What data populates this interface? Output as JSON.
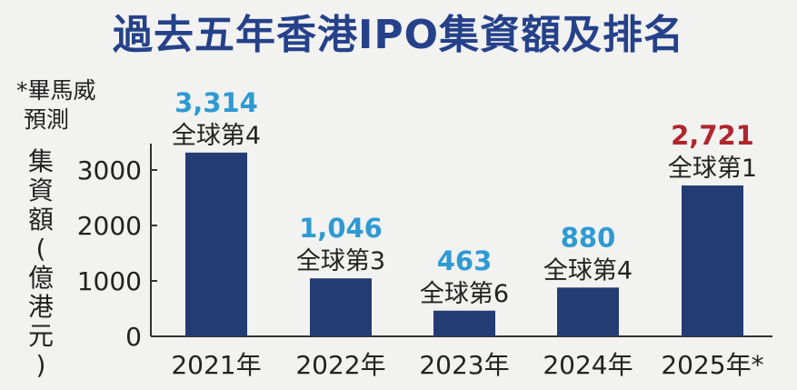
{
  "title": "過去五年香港IPO集資額及排名",
  "note": {
    "line1": "*畢馬威",
    "line2": "預測"
  },
  "ylabel_chars": [
    "集",
    "資",
    "額",
    "(",
    "億",
    "港",
    "元",
    ")"
  ],
  "colors": {
    "bar": "#243c74",
    "value": "#2e9ad3",
    "value_highlight": "#b1262c",
    "title": "#25418a"
  },
  "chart_data": {
    "type": "bar",
    "title": "過去五年香港IPO集資額及排名",
    "ylabel": "集資額(億港元)",
    "xlabel": "",
    "ylim": [
      0,
      3500
    ],
    "yticks": [
      0,
      1000,
      2000,
      3000
    ],
    "grid": false,
    "categories": [
      "2021年",
      "2022年",
      "2023年",
      "2024年",
      "2025年*"
    ],
    "values": [
      3314,
      1046,
      463,
      880,
      2721
    ],
    "value_labels": [
      "3,314",
      "1,046",
      "463",
      "880",
      "2,721"
    ],
    "rank_labels": [
      "全球第4",
      "全球第3",
      "全球第6",
      "全球第4",
      "全球第1"
    ],
    "highlight_index": 4
  }
}
